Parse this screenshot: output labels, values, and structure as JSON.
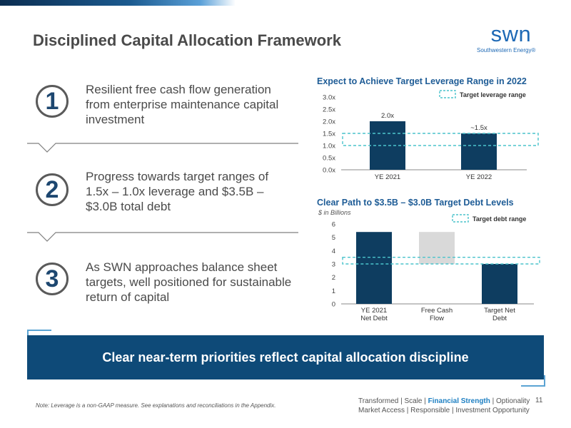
{
  "slide": {
    "title": "Disciplined Capital Allocation Framework",
    "logo": {
      "wordmark": "swn",
      "subtitle": "Southwestern Energy®"
    },
    "page_number": "11"
  },
  "priorities": [
    {
      "number": "1",
      "text": "Resilient free cash flow generation from enterprise maintenance capital investment"
    },
    {
      "number": "2",
      "text": "Progress towards target ranges of 1.5x – 1.0x leverage and $3.5B – $3.0B total debt"
    },
    {
      "number": "3",
      "text": "As SWN approaches balance sheet targets, well positioned for sustainable return of capital"
    }
  ],
  "banner": {
    "text": "Clear near-term priorities reflect capital allocation discipline"
  },
  "footnote": "Note: Leverage is a non-GAAP measure. See explanations and reconciliations in the Appendix.",
  "tagline": {
    "line1_a": "Transformed | Scale | ",
    "line1_highlight": "Financial Strength",
    "line1_b": " | Optionality",
    "line2": "Market Access | Responsible | Investment Opportunity"
  },
  "colors": {
    "bar_navy": "#0e3d60",
    "bar_gray": "#d9d9d9",
    "target_band": "#4bc3cc",
    "accent_blue": "#1e5c96"
  },
  "chart_data": [
    {
      "type": "bar",
      "title": "Expect to Achieve Target Leverage Range in 2022",
      "categories": [
        "YE 2021",
        "YE 2022"
      ],
      "values": [
        2.0,
        1.5
      ],
      "data_labels": [
        "2.0x",
        "~1.5x"
      ],
      "ylim": [
        0,
        3.0
      ],
      "yticks": [
        "0.0x",
        "0.5x",
        "1.0x",
        "1.5x",
        "2.0x",
        "2.5x",
        "3.0x"
      ],
      "target_range": [
        1.0,
        1.5
      ],
      "legend": "Target leverage range",
      "legend_position": "top-right",
      "grid": false
    },
    {
      "type": "bar",
      "title": "Clear Path to $3.5B – $3.0B Target Debt Levels",
      "subtitle": "$ in Billions",
      "categories": [
        "YE 2021 Net Debt",
        "Free Cash Flow",
        "Target Net Debt"
      ],
      "category_lines": [
        [
          "YE 2021",
          "Net Debt"
        ],
        [
          "Free Cash",
          "Flow"
        ],
        [
          "Target Net",
          "Debt"
        ]
      ],
      "values": [
        5.4,
        -2.4,
        3.0
      ],
      "waterfall": [
        {
          "start": 0,
          "end": 5.4,
          "kind": "total"
        },
        {
          "start": 5.4,
          "end": 3.0,
          "kind": "decrease"
        },
        {
          "start": 0,
          "end": 3.0,
          "kind": "total"
        }
      ],
      "ylim": [
        0,
        6
      ],
      "yticks": [
        "0",
        "1",
        "2",
        "3",
        "4",
        "5",
        "6"
      ],
      "target_range": [
        3.0,
        3.5
      ],
      "legend": "Target debt range",
      "legend_position": "top-right",
      "grid": false
    }
  ]
}
